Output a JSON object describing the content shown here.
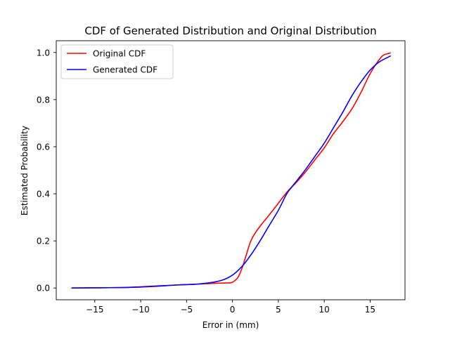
{
  "chart_data": {
    "type": "line",
    "title": "CDF of Generated Distribution and Original Distribution",
    "xlabel": "Error in (mm)",
    "ylabel": "Estimated Probability",
    "xlim": [
      -19.2,
      18.8
    ],
    "ylim": [
      -0.05,
      1.05
    ],
    "xticks": [
      -15,
      -10,
      -5,
      0,
      5,
      10,
      15
    ],
    "xtick_labels": [
      "−15",
      "−10",
      "−5",
      "0",
      "5",
      "10",
      "15"
    ],
    "yticks": [
      0.0,
      0.2,
      0.4,
      0.6,
      0.8,
      1.0
    ],
    "ytick_labels": [
      "0.0",
      "0.2",
      "0.4",
      "0.6",
      "0.8",
      "1.0"
    ],
    "grid": false,
    "legend": "top-left",
    "series": [
      {
        "name": "Original CDF",
        "color": "#ff0000",
        "x": [
          -17.5,
          -15,
          -12,
          -10,
          -8,
          -6,
          -4,
          -2,
          -1,
          -0.2,
          0.5,
          1,
          1.5,
          2,
          2.5,
          3,
          4,
          5,
          6,
          7,
          8,
          9,
          10,
          11,
          12,
          13,
          14,
          15,
          16,
          16.5,
          17.2
        ],
        "y": [
          0.0,
          0.001,
          0.002,
          0.004,
          0.008,
          0.013,
          0.016,
          0.02,
          0.021,
          0.022,
          0.04,
          0.08,
          0.14,
          0.2,
          0.235,
          0.262,
          0.31,
          0.36,
          0.41,
          0.45,
          0.495,
          0.545,
          0.595,
          0.655,
          0.705,
          0.76,
          0.83,
          0.91,
          0.97,
          0.99,
          0.998
        ]
      },
      {
        "name": "Generated CDF",
        "color": "#0000ff",
        "x": [
          -17.5,
          -15,
          -12,
          -10,
          -8,
          -6,
          -4,
          -3,
          -2,
          -1,
          0,
          1,
          2,
          3,
          4,
          5,
          6,
          7,
          8,
          9,
          10,
          11,
          12,
          13,
          14,
          15,
          16,
          17.2
        ],
        "y": [
          0.0,
          0.001,
          0.002,
          0.005,
          0.009,
          0.013,
          0.016,
          0.02,
          0.025,
          0.035,
          0.055,
          0.09,
          0.14,
          0.2,
          0.265,
          0.33,
          0.405,
          0.455,
          0.505,
          0.56,
          0.615,
          0.68,
          0.745,
          0.815,
          0.875,
          0.925,
          0.96,
          0.985
        ]
      }
    ]
  }
}
